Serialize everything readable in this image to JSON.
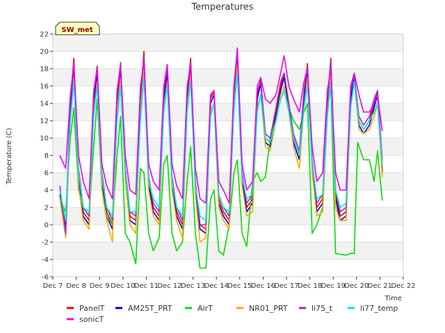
{
  "chart_data": {
    "type": "line",
    "title": "Temperatures",
    "xlabel": "Time",
    "ylabel": "Temperature (C)",
    "badge": "SW_met",
    "ylim": [
      -6,
      22
    ],
    "yticks": [
      -6,
      -4,
      -2,
      0,
      2,
      4,
      6,
      8,
      10,
      12,
      14,
      16,
      18,
      20,
      22
    ],
    "xlim": [
      7,
      22
    ],
    "xticks": [
      {
        "v": 7,
        "label": "Dec 7"
      },
      {
        "v": 8,
        "label": "Dec 8"
      },
      {
        "v": 9,
        "label": "Dec 9"
      },
      {
        "v": 10,
        "label": "Dec 10"
      },
      {
        "v": 11,
        "label": "Dec 11"
      },
      {
        "v": 12,
        "label": "Dec 12"
      },
      {
        "v": 13,
        "label": "Dec 13"
      },
      {
        "v": 14,
        "label": "Dec 14"
      },
      {
        "v": 15,
        "label": "Dec 15"
      },
      {
        "v": 16,
        "label": "Dec 16"
      },
      {
        "v": 17,
        "label": "Dec 17"
      },
      {
        "v": 18,
        "label": "Dec 18"
      },
      {
        "v": 19,
        "label": "Dec 19"
      },
      {
        "v": 20,
        "label": "Dec 20"
      },
      {
        "v": 21,
        "label": "Dec 21"
      },
      {
        "v": 22,
        "label": "Dec 22"
      }
    ],
    "grid": true,
    "legend_position": "bottom",
    "series": [
      {
        "name": "PanelT",
        "color": "#ff0000",
        "x": [
          7.3,
          7.55,
          7.75,
          7.9,
          8.1,
          8.3,
          8.55,
          8.75,
          8.9,
          9.1,
          9.3,
          9.55,
          9.75,
          9.9,
          10.1,
          10.3,
          10.55,
          10.75,
          10.9,
          11.1,
          11.3,
          11.55,
          11.75,
          11.9,
          12.1,
          12.3,
          12.55,
          12.75,
          12.9,
          13.1,
          13.3,
          13.55,
          13.75,
          13.9,
          14.1,
          14.3,
          14.55,
          14.75,
          14.9,
          15.1,
          15.3,
          15.55,
          15.75,
          15.9,
          16.1,
          16.3,
          16.55,
          16.75,
          16.9,
          17.1,
          17.3,
          17.55,
          17.75,
          17.9,
          18.1,
          18.3,
          18.55,
          18.75,
          18.9,
          19.1,
          19.3,
          19.55,
          19.75,
          19.9,
          20.1,
          20.3,
          20.55,
          20.75,
          20.9,
          21.1
        ],
        "y": [
          4,
          0,
          14,
          19.2,
          6,
          1.5,
          0.5,
          15,
          18.3,
          5.5,
          1.5,
          0,
          14.5,
          18.7,
          6,
          1,
          0.5,
          14.5,
          20,
          5,
          2,
          1,
          15,
          18,
          5,
          1.5,
          0,
          15,
          19.2,
          4.5,
          0,
          -0.5,
          14.5,
          15.5,
          3,
          1.5,
          0.5,
          15,
          20.3,
          5.5,
          2,
          3,
          15,
          16.8,
          10,
          9.5,
          13,
          16,
          17.5,
          14,
          10,
          8,
          15,
          18.6,
          7,
          2,
          3,
          14,
          19.2,
          3.5,
          1,
          1.5,
          15,
          17.4,
          12,
          11,
          12,
          14,
          15.4,
          6.2
        ]
      },
      {
        "name": "AM25T_PRT",
        "color": "#0000cc",
        "x": [
          7.3,
          7.55,
          7.75,
          7.9,
          8.1,
          8.3,
          8.55,
          8.75,
          8.9,
          9.1,
          9.3,
          9.55,
          9.75,
          9.9,
          10.1,
          10.3,
          10.55,
          10.75,
          10.9,
          11.1,
          11.3,
          11.55,
          11.75,
          11.9,
          12.1,
          12.3,
          12.55,
          12.75,
          12.9,
          13.1,
          13.3,
          13.55,
          13.75,
          13.9,
          14.1,
          14.3,
          14.55,
          14.75,
          14.9,
          15.1,
          15.3,
          15.55,
          15.75,
          15.9,
          16.1,
          16.3,
          16.55,
          16.75,
          16.9,
          17.1,
          17.3,
          17.55,
          17.75,
          17.9,
          18.1,
          18.3,
          18.55,
          18.75,
          18.9,
          19.1,
          19.3,
          19.55,
          19.75,
          19.9,
          20.1,
          20.3,
          20.55,
          20.75,
          20.9,
          21.1
        ],
        "y": [
          3.5,
          -0.5,
          13,
          18,
          5.5,
          1,
          0,
          14,
          17.5,
          5,
          1,
          -0.5,
          14,
          18,
          5.5,
          0.5,
          0,
          14,
          19.3,
          4.5,
          1.5,
          0.5,
          14.5,
          17.5,
          4.5,
          1,
          -0.5,
          14.5,
          18.5,
          4,
          -0.5,
          -1,
          14,
          15,
          2.5,
          1,
          0,
          14.5,
          19.5,
          5,
          1.5,
          2.5,
          14.5,
          16.3,
          9.5,
          9,
          12.5,
          15.5,
          17,
          13.5,
          9.5,
          7.5,
          14.5,
          18,
          6.5,
          1.5,
          2.5,
          13.5,
          18.5,
          3,
          0.5,
          1,
          14.5,
          17,
          11.5,
          10.5,
          11.5,
          13.5,
          15,
          6
        ]
      },
      {
        "name": "AirT",
        "color": "#00dd00",
        "x": [
          7.3,
          7.55,
          7.75,
          7.9,
          8.1,
          8.3,
          8.55,
          8.75,
          8.9,
          9.1,
          9.3,
          9.55,
          9.75,
          9.9,
          10.1,
          10.3,
          10.55,
          10.75,
          10.9,
          11.1,
          11.3,
          11.55,
          11.75,
          11.9,
          12.1,
          12.3,
          12.55,
          12.75,
          12.9,
          13.1,
          13.3,
          13.55,
          13.75,
          13.9,
          14.1,
          14.3,
          14.55,
          14.75,
          14.9,
          15.1,
          15.3,
          15.55,
          15.75,
          15.9,
          16.1,
          16.3,
          16.55,
          16.75,
          16.9,
          17.1,
          17.3,
          17.55,
          17.75,
          17.9,
          18.1,
          18.3,
          18.55,
          18.75,
          18.9,
          19.1,
          19.3,
          19.55,
          19.75,
          19.9,
          20.05,
          20.3,
          20.55,
          20.75,
          20.9,
          21.1
        ],
        "y": [
          3,
          1.5,
          10,
          13.5,
          4,
          2,
          1,
          9,
          14.5,
          4,
          1,
          0,
          8,
          12.5,
          -1,
          -2,
          -4.5,
          6.5,
          6,
          -1,
          -3,
          -1.5,
          7,
          8,
          -1,
          -3,
          -2,
          5,
          9,
          -1,
          -5,
          -5,
          3,
          4,
          -3,
          -3.5,
          0,
          6,
          7.5,
          -1,
          -2.5,
          5,
          6,
          5,
          5.5,
          10,
          12,
          14.5,
          15.5,
          13.5,
          12,
          11,
          13,
          14,
          -1,
          0,
          2,
          13,
          16,
          -3.3,
          -3.4,
          -3.5,
          -3.3,
          -3.3,
          9.5,
          7.5,
          7.5,
          5,
          8.5,
          2.8
        ]
      },
      {
        "name": "NR01_PRT",
        "color": "#ffa500",
        "x": [
          7.3,
          7.55,
          7.75,
          7.9,
          8.1,
          8.3,
          8.55,
          8.75,
          8.9,
          9.1,
          9.3,
          9.55,
          9.75,
          9.9,
          10.1,
          10.3,
          10.55,
          10.75,
          10.9,
          11.1,
          11.3,
          11.55,
          11.75,
          11.9,
          12.1,
          12.3,
          12.55,
          12.75,
          12.9,
          13.1,
          13.3,
          13.55,
          13.75,
          13.9,
          14.1,
          14.3,
          14.55,
          14.75,
          14.9,
          15.1,
          15.3,
          15.55,
          15.75,
          15.9,
          16.1,
          16.3,
          16.55,
          16.75,
          16.9,
          17.1,
          17.3,
          17.55,
          17.75,
          17.9,
          18.1,
          18.3,
          18.55,
          18.75,
          18.9,
          19.1,
          19.3,
          19.55,
          19.75,
          19.9,
          20.1,
          20.3,
          20.55,
          20.75,
          20.9,
          21.1
        ],
        "y": [
          3,
          -1.5,
          12,
          17,
          4.5,
          0.5,
          -0.5,
          13,
          16.5,
          4,
          0.5,
          -2,
          13,
          17,
          5,
          0,
          -1,
          13,
          18,
          4,
          1,
          0,
          13.5,
          16.5,
          4,
          0.5,
          -1.5,
          13.5,
          17.5,
          3.5,
          -2,
          -1.5,
          13,
          14,
          2,
          0.5,
          -0.5,
          13.5,
          18.5,
          4.5,
          1,
          1.5,
          13.5,
          15,
          9,
          8.5,
          12,
          15,
          16,
          13,
          9,
          6.5,
          13.5,
          17,
          6,
          1,
          1.5,
          12.5,
          17.5,
          2,
          0.5,
          0.5,
          13.5,
          16.5,
          11,
          10.5,
          11,
          12.5,
          14,
          5.5
        ]
      },
      {
        "name": "li75_t",
        "color": "#9932cc",
        "x": [
          7.3,
          7.55,
          7.75,
          7.9,
          8.1,
          8.3,
          8.55,
          8.75,
          8.9,
          9.1,
          9.3,
          9.55,
          9.75,
          9.9,
          10.1,
          10.3,
          10.55,
          10.75,
          10.9,
          11.1,
          11.3,
          11.55,
          11.75,
          11.9,
          12.1,
          12.3,
          12.55,
          12.75,
          12.9,
          13.1,
          13.3,
          13.55,
          13.75,
          13.9,
          14.1,
          14.3,
          14.55,
          14.75,
          14.9,
          15.1,
          15.3,
          15.55,
          15.75,
          15.9,
          16.1,
          16.3,
          16.55,
          16.75,
          16.9,
          17.1,
          17.3,
          17.55,
          17.75,
          17.9,
          18.1,
          18.3,
          18.55,
          18.75,
          18.9,
          19.1,
          19.3,
          19.55,
          19.75,
          19.9,
          20.1,
          20.3,
          20.55,
          20.75,
          20.9,
          21.1
        ],
        "y": [
          4.5,
          -1,
          14.5,
          18.5,
          6.5,
          2,
          1,
          15,
          18,
          6,
          2,
          0.5,
          15,
          18.3,
          6.5,
          1.5,
          1,
          15,
          19.5,
          5.5,
          2.5,
          1.5,
          15.5,
          18,
          5.5,
          2,
          0.5,
          15.5,
          18.8,
          5,
          0,
          0,
          15,
          15.3,
          3.5,
          2,
          1,
          15.5,
          19.8,
          6,
          2.5,
          3.5,
          15.5,
          16.5,
          10.5,
          10,
          13.5,
          16.5,
          17.5,
          14,
          10.5,
          8.5,
          15.5,
          18.3,
          7.5,
          2.5,
          3.5,
          14.5,
          18.8,
          4,
          1.5,
          2,
          15.5,
          17.2,
          12.5,
          11.5,
          12.5,
          14.5,
          15.5,
          7.5
        ]
      },
      {
        "name": "li77_temp",
        "color": "#00e5ee",
        "x": [
          7.3,
          7.55,
          7.75,
          7.9,
          8.1,
          8.3,
          8.55,
          8.75,
          8.9,
          9.1,
          9.3,
          9.55,
          9.75,
          9.9,
          10.1,
          10.3,
          10.55,
          10.75,
          10.9,
          11.1,
          11.3,
          11.55,
          11.75,
          11.9,
          12.1,
          12.3,
          12.55,
          12.75,
          12.9,
          13.1,
          13.3,
          13.55,
          13.75,
          13.9,
          14.1,
          14.3,
          14.55,
          14.75,
          14.9,
          15.1,
          15.3,
          15.55,
          15.75,
          15.9,
          16.1,
          16.3,
          16.55,
          16.75,
          16.9,
          17.1,
          17.3,
          17.55,
          17.75,
          17.9,
          18.1,
          18.3,
          18.55,
          18.75,
          18.9,
          19.1,
          19.3,
          19.55,
          19.75,
          19.9,
          20.1,
          20.3,
          20.55,
          20.75,
          20.9,
          21.1
        ],
        "y": [
          4,
          0.5,
          12,
          16.5,
          6,
          2,
          1.5,
          12.5,
          16,
          5.5,
          2,
          1,
          12,
          16,
          6,
          1.5,
          1.5,
          12,
          17,
          5,
          3,
          2,
          13,
          16,
          5,
          2,
          1,
          13,
          16.5,
          4.5,
          1,
          0.5,
          12.5,
          14,
          3.5,
          2,
          1.5,
          13,
          17.5,
          5.5,
          3,
          3.5,
          13,
          15,
          10,
          9.5,
          12,
          14.5,
          15.5,
          13,
          10,
          8,
          13.5,
          16,
          7,
          3,
          3.5,
          12.5,
          16.5,
          4,
          2,
          2.5,
          13.5,
          16.5,
          12,
          11,
          12,
          13,
          14,
          7
        ]
      },
      {
        "name": "sonicT",
        "color": "#ee00ee",
        "x": [
          7.3,
          7.55,
          7.75,
          7.9,
          8.1,
          8.3,
          8.55,
          8.75,
          8.9,
          9.1,
          9.3,
          9.55,
          9.75,
          9.9,
          10.1,
          10.3,
          10.55,
          10.75,
          10.9,
          11.1,
          11.3,
          11.55,
          11.75,
          11.9,
          12.1,
          12.3,
          12.55,
          12.75,
          12.9,
          13.1,
          13.3,
          13.55,
          13.75,
          13.9,
          14.1,
          14.3,
          14.55,
          14.75,
          14.9,
          15.1,
          15.3,
          15.55,
          15.75,
          15.9,
          16.1,
          16.3,
          16.55,
          16.75,
          16.9,
          17.1,
          17.3,
          17.55,
          17.75,
          17.9,
          18.1,
          18.3,
          18.55,
          18.75,
          18.9,
          19.1,
          19.3,
          19.55,
          19.75,
          19.9,
          20.1,
          20.3,
          20.55,
          20.75,
          20.9,
          21.1
        ],
        "y": [
          8,
          6.5,
          15,
          18.5,
          8,
          5,
          3,
          15.5,
          18,
          7,
          4.5,
          3,
          15.5,
          18.5,
          8,
          4,
          3.5,
          16,
          19,
          7,
          5,
          4,
          16,
          18.5,
          7,
          4.5,
          3,
          16,
          18.5,
          6.5,
          3,
          2.5,
          15,
          15.5,
          5,
          4,
          2.5,
          16,
          20.4,
          7,
          4,
          5,
          16,
          17,
          14.5,
          14,
          15,
          17.5,
          19.5,
          16,
          14.5,
          13,
          16.5,
          18,
          9,
          5,
          6,
          15.5,
          18,
          6,
          4,
          4,
          16,
          17.5,
          15,
          13,
          13,
          14,
          15,
          10.8
        ]
      }
    ]
  }
}
